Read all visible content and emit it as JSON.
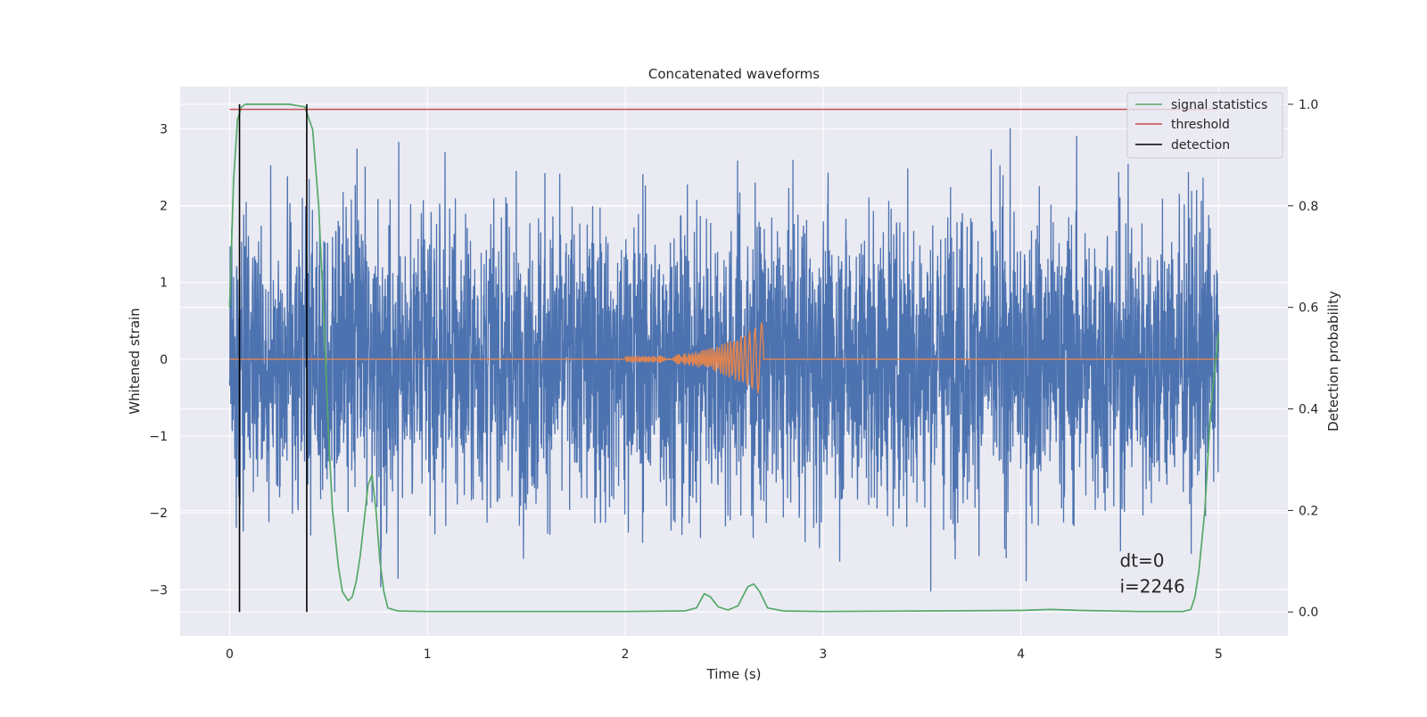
{
  "chart_data": {
    "type": "line",
    "title": "Concatenated waveforms",
    "xlabel": "Time (s)",
    "ylabel": "Whitened strain",
    "ylabel_right": "Detection probability",
    "xlim": [
      -0.25,
      5.35
    ],
    "ylim": [
      -3.6,
      3.55
    ],
    "ylim_right": [
      -0.047,
      1.035
    ],
    "x_ticks": [
      0,
      1,
      2,
      3,
      4,
      5
    ],
    "x_tick_labels": [
      "0",
      "1",
      "2",
      "3",
      "4",
      "5"
    ],
    "y_ticks": [
      -3,
      -2,
      -1,
      0,
      1,
      2,
      3
    ],
    "y_tick_labels": [
      "−3",
      "−2",
      "−1",
      "0",
      "1",
      "2",
      "3"
    ],
    "y_right_ticks": [
      0.0,
      0.2,
      0.4,
      0.6,
      0.8,
      1.0
    ],
    "y_right_tick_labels": [
      "0.0",
      "0.2",
      "0.4",
      "0.6",
      "0.8",
      "1.0"
    ],
    "grid": true,
    "legend_position": "top-right",
    "legend": [
      "signal statistics",
      "threshold",
      "detection"
    ],
    "colors": {
      "noise": "#4c72b0",
      "template": "#dd8452",
      "statistics": "#55a868",
      "threshold": "#c44e52",
      "detection": "#000000",
      "background": "#eaeaf2",
      "grid": "#ffffff"
    },
    "noise": {
      "axis": "left",
      "x_range": [
        0,
        5
      ],
      "sample_count": 4000,
      "ylim_observed": [
        -3.3,
        3.2
      ]
    },
    "template": {
      "axis": "left",
      "x_range": [
        0,
        5
      ],
      "chirp_start": 2.0,
      "chirp_end": 2.7,
      "peak_amplitude": 0.5
    },
    "signal_statistics": {
      "axis": "right",
      "x": [
        0,
        0.02,
        0.04,
        0.06,
        0.08,
        0.1,
        0.2,
        0.3,
        0.38,
        0.42,
        0.45,
        0.48,
        0.5,
        0.52,
        0.55,
        0.57,
        0.6,
        0.62,
        0.64,
        0.66,
        0.68,
        0.7,
        0.72,
        0.74,
        0.76,
        0.78,
        0.8,
        0.85,
        1.0,
        1.5,
        2.0,
        2.3,
        2.36,
        2.4,
        2.43,
        2.47,
        2.52,
        2.57,
        2.62,
        2.65,
        2.68,
        2.72,
        2.8,
        3.0,
        3.5,
        4.0,
        4.15,
        4.3,
        4.6,
        4.82,
        4.86,
        4.88,
        4.9,
        4.93,
        4.96,
        5.0
      ],
      "y": [
        0.6,
        0.85,
        0.97,
        0.995,
        1.0,
        1.0,
        1.0,
        1.0,
        0.995,
        0.95,
        0.8,
        0.55,
        0.35,
        0.2,
        0.09,
        0.04,
        0.022,
        0.03,
        0.06,
        0.11,
        0.18,
        0.25,
        0.27,
        0.2,
        0.1,
        0.04,
        0.008,
        0.002,
        0.001,
        0.001,
        0.001,
        0.002,
        0.008,
        0.036,
        0.03,
        0.01,
        0.004,
        0.012,
        0.05,
        0.055,
        0.04,
        0.008,
        0.002,
        0.001,
        0.002,
        0.003,
        0.005,
        0.003,
        0.001,
        0.001,
        0.005,
        0.03,
        0.08,
        0.2,
        0.4,
        0.55
      ]
    },
    "threshold": {
      "axis": "right",
      "value": 0.99,
      "x_range": [
        0,
        5
      ]
    },
    "detections": {
      "axis": "right",
      "x": [
        0.05,
        0.39
      ],
      "y_range": [
        0.0,
        1.0
      ]
    },
    "annotations": [
      "dt=0",
      "i=2246"
    ],
    "annotation_anchor": {
      "x": 4.5,
      "y": -2.7
    }
  }
}
